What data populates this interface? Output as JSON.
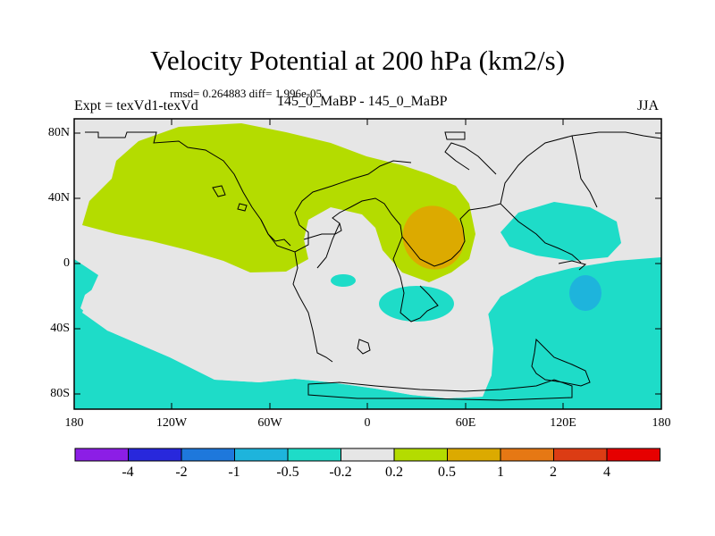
{
  "title": "Velocity Potential at 200 hPa (km2/s)",
  "stats_line": "rmsd= 0.264883 diff= 1.996e-05",
  "left_label": "Expt = texVd1-texVd",
  "center_label": "145_0_MaBP - 145_0_MaBP",
  "right_label": "JJA",
  "map": {
    "projection": "cylindrical-equidistant",
    "lon_range": [
      -180,
      180
    ],
    "lat_range": [
      -90,
      90
    ],
    "lat_ticks": [
      "80N",
      "40N",
      "0",
      "40S",
      "80S"
    ],
    "lon_ticks": [
      "180",
      "120W",
      "60W",
      "0",
      "60E",
      "120E",
      "180"
    ]
  },
  "colorbar": {
    "labels": [
      "-4",
      "-2",
      "-1",
      "-0.5",
      "-0.2",
      "0.2",
      "0.5",
      "1",
      "2",
      "4"
    ],
    "colors": [
      "#8c1ee6",
      "#2828dc",
      "#1e78dc",
      "#1eb4dc",
      "#1edcc8",
      "#e6e6e6",
      "#b4dc00",
      "#dcaa00",
      "#e67814",
      "#dc3c14",
      "#e60000"
    ]
  },
  "colors": {
    "neutral": "#e6e6e6",
    "positive_weak": "#b4dc00",
    "positive_mid": "#dcaa00",
    "negative_weak": "#1edcc8",
    "negative_mid": "#1eb4dc",
    "coast": "#000000"
  }
}
